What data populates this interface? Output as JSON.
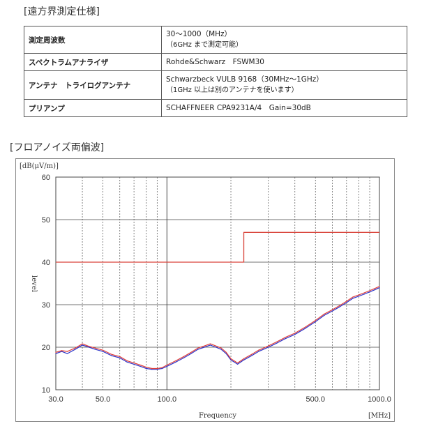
{
  "spec_section": {
    "heading": "[遠方界測定仕様]",
    "rows": [
      {
        "label": "測定周波数",
        "value": "30～1000（MHz）",
        "value2": "（6GHz まで測定可能）"
      },
      {
        "label": "スペクトラムアナライザ",
        "value": "Rohde&Schwarz　FSWM30",
        "value2": ""
      },
      {
        "label": "アンテナ　トライログアンテナ",
        "value": "Schwarzbeck VULB 9168（30MHz～1GHz）",
        "value2": "（1GHz 以上は別のアンテナを使います）"
      },
      {
        "label": "プリアンプ",
        "value": "SCHAFFNEER CPA9231A/4　Gain=30dB",
        "value2": ""
      }
    ]
  },
  "chart_section": {
    "heading": "[フロアノイズ両偏波]"
  },
  "colors": {
    "limit_line": "#d9453c",
    "trace_blue": "#2c33c9",
    "trace_red": "#e0403a",
    "grid_dashed": "#666666",
    "grid_solid": "#444444"
  },
  "chart_data": {
    "type": "line",
    "title": "",
    "xlabel": "Frequency",
    "ylabel": "level",
    "y_unit_label": "[dB(μV/m)]",
    "x_unit_label": "[MHz]",
    "x_scale": "log",
    "xlim": [
      30,
      1000
    ],
    "ylim": [
      10,
      60
    ],
    "x_tick_labels": [
      {
        "value": 30,
        "label": "30.0"
      },
      {
        "value": 50,
        "label": "50.0"
      },
      {
        "value": 100,
        "label": "100.0"
      },
      {
        "value": 500,
        "label": "500.0"
      },
      {
        "value": 1000,
        "label": "1000.0"
      }
    ],
    "y_tick_labels": [
      {
        "value": 10,
        "label": "10"
      },
      {
        "value": 20,
        "label": "20"
      },
      {
        "value": 30,
        "label": "30"
      },
      {
        "value": 40,
        "label": "40"
      },
      {
        "value": 50,
        "label": "50"
      },
      {
        "value": 60,
        "label": "60"
      }
    ],
    "grid": true,
    "series": [
      {
        "role": "limit",
        "x": [
          30,
          230,
          230,
          1000
        ],
        "y": [
          40,
          40,
          47,
          47
        ]
      },
      {
        "role": "trace-blue",
        "x": [
          30,
          32,
          34,
          37,
          40,
          43,
          46,
          50,
          55,
          60,
          65,
          70,
          75,
          80,
          85,
          90,
          95,
          100,
          110,
          120,
          130,
          140,
          150,
          160,
          170,
          180,
          190,
          200,
          215,
          230,
          250,
          270,
          300,
          330,
          360,
          400,
          450,
          500,
          550,
          600,
          650,
          700,
          750,
          800,
          850,
          900,
          950,
          1000
        ],
        "y": [
          18.5,
          19.0,
          18.5,
          19.5,
          20.5,
          20.0,
          19.5,
          19.0,
          18.0,
          17.5,
          16.5,
          16.0,
          15.5,
          15.0,
          14.8,
          14.8,
          15.0,
          15.5,
          16.5,
          17.5,
          18.5,
          19.5,
          20.0,
          20.5,
          20.0,
          19.5,
          18.5,
          17.0,
          16.0,
          17.0,
          18.0,
          19.0,
          20.0,
          21.0,
          22.0,
          23.0,
          24.5,
          26.0,
          27.5,
          28.5,
          29.5,
          30.5,
          31.5,
          32.0,
          32.5,
          33.0,
          33.5,
          34.0
        ]
      },
      {
        "role": "trace-red",
        "x": [
          30,
          32,
          34,
          37,
          40,
          43,
          46,
          50,
          55,
          60,
          65,
          70,
          75,
          80,
          85,
          90,
          95,
          100,
          110,
          120,
          130,
          140,
          150,
          160,
          170,
          180,
          190,
          200,
          215,
          230,
          250,
          270,
          300,
          330,
          360,
          400,
          450,
          500,
          550,
          600,
          650,
          700,
          750,
          800,
          850,
          900,
          950,
          1000
        ],
        "y": [
          18.8,
          19.2,
          19.0,
          19.8,
          20.8,
          20.2,
          19.8,
          19.3,
          18.3,
          17.8,
          16.8,
          16.3,
          15.8,
          15.3,
          15.0,
          15.0,
          15.2,
          15.8,
          16.8,
          17.8,
          18.8,
          19.8,
          20.3,
          20.8,
          20.3,
          19.8,
          18.8,
          17.3,
          16.3,
          17.3,
          18.3,
          19.3,
          20.3,
          21.3,
          22.3,
          23.3,
          24.8,
          26.3,
          27.8,
          28.8,
          29.8,
          30.8,
          31.8,
          32.3,
          32.8,
          33.3,
          33.8,
          34.3
        ]
      }
    ]
  }
}
